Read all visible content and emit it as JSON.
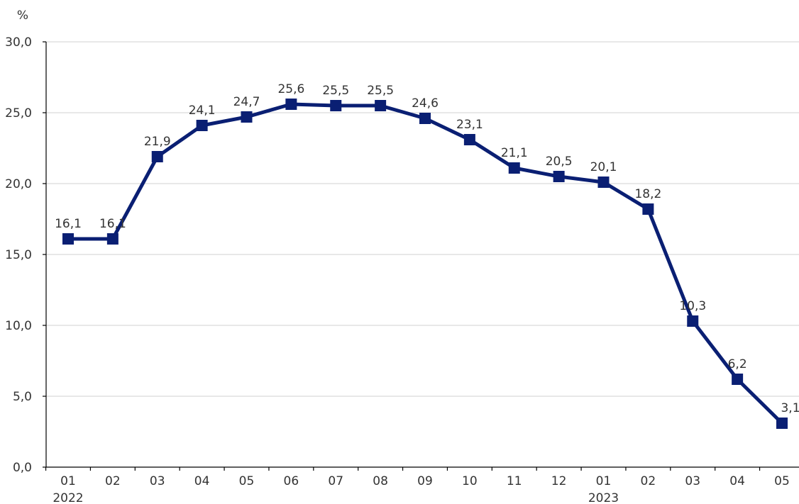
{
  "chart_data": {
    "type": "line",
    "y_unit": "%",
    "ylim": [
      0,
      30
    ],
    "y_ticks": [
      0,
      5,
      10,
      15,
      20,
      25,
      30
    ],
    "y_tick_labels": [
      "0,0",
      "5,0",
      "10,0",
      "15,0",
      "20,0",
      "25,0",
      "30,0"
    ],
    "grid": true,
    "categories": [
      "01",
      "02",
      "03",
      "04",
      "05",
      "06",
      "07",
      "08",
      "09",
      "10",
      "11",
      "12",
      "01",
      "02",
      "03",
      "04",
      "05"
    ],
    "years": [
      {
        "index": 0,
        "label": "2022"
      },
      {
        "index": 12,
        "label": "2023"
      }
    ],
    "series": [
      {
        "color": "#0a1f73",
        "marker": "square",
        "values": [
          16.1,
          16.1,
          21.9,
          24.1,
          24.7,
          25.6,
          25.5,
          25.5,
          24.6,
          23.1,
          21.1,
          20.5,
          20.1,
          18.2,
          10.3,
          6.2,
          3.1
        ],
        "labels": [
          "16,1",
          "16,1",
          "21,9",
          "24,1",
          "24,7",
          "25,6",
          "25,5",
          "25,5",
          "24,6",
          "23,1",
          "21,1",
          "20,5",
          "20,1",
          "18,2",
          "10,3",
          "6,2",
          "3,1"
        ]
      }
    ]
  }
}
